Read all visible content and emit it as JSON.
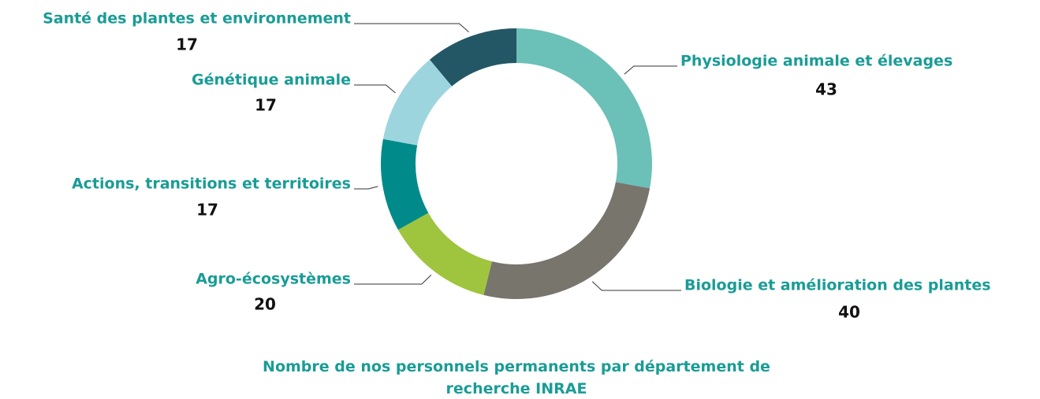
{
  "chart_data": {
    "type": "donut",
    "title": "Nombre de nos personnels permanents par département de recherche INRAE",
    "categories": [
      "Physiologie animale et élevages",
      "Biologie et amélioration des plantes",
      "Agro-écosystèmes",
      "Actions, transitions et territoires",
      "Génétique animale",
      "Santé des plantes et environnement"
    ],
    "values": [
      43,
      40,
      20,
      17,
      17,
      17
    ],
    "colors": [
      "#6bc0b8",
      "#78756d",
      "#9fc43e",
      "#008b8a",
      "#9dd5df",
      "#235766"
    ]
  }
}
